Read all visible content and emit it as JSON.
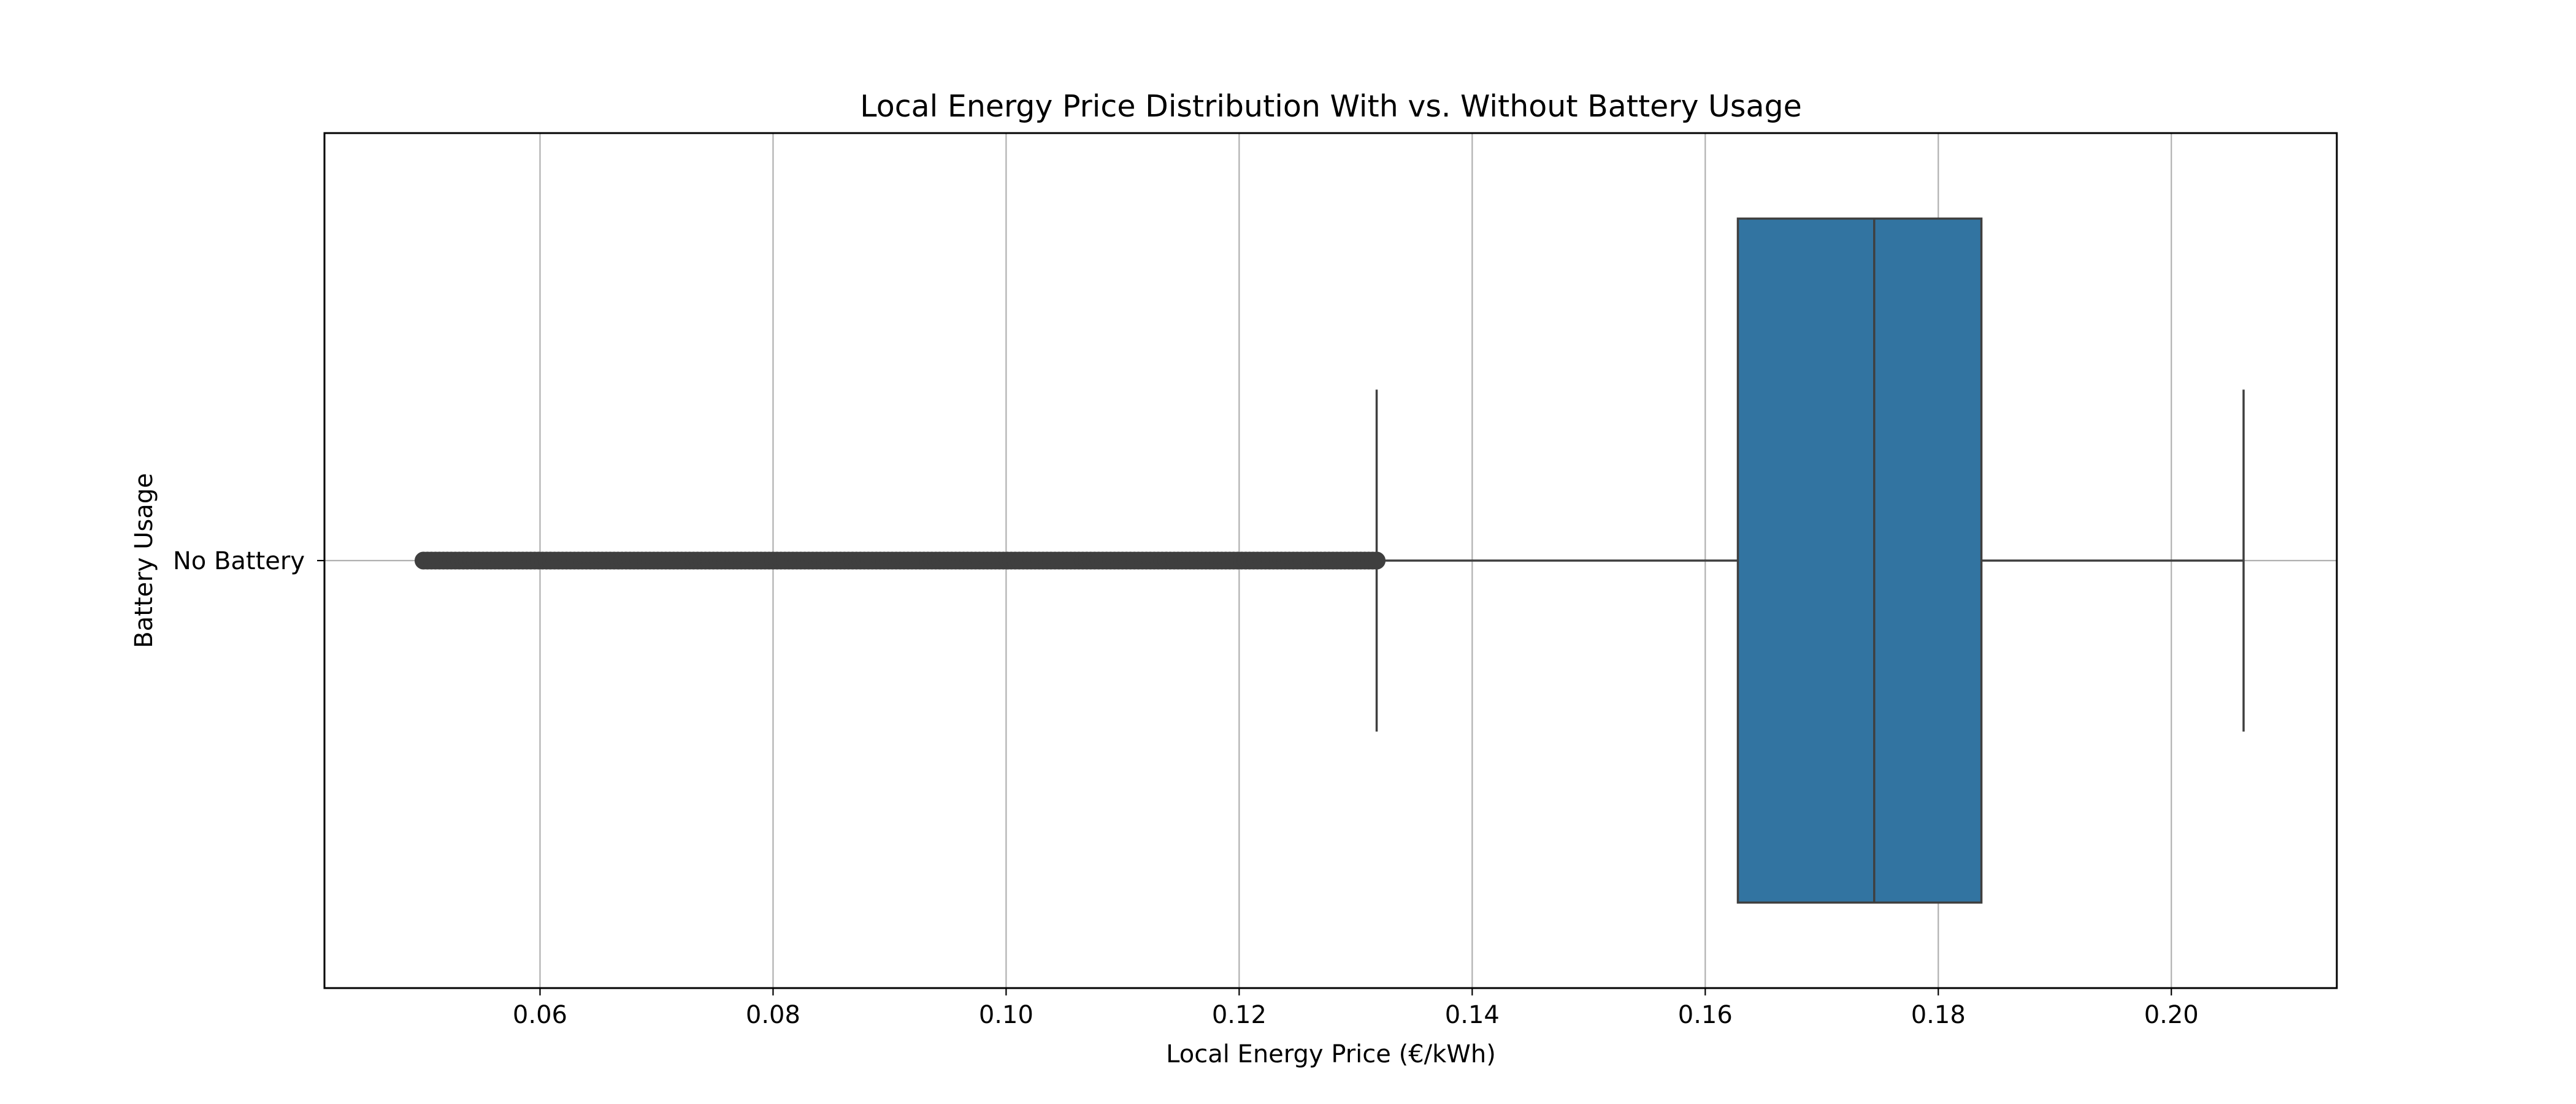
{
  "chart_data": {
    "type": "boxplot",
    "orientation": "horizontal",
    "title": "Local Energy Price Distribution With vs. Without Battery Usage",
    "xlabel": "Local Energy Price (€/kWh)",
    "ylabel": "Battery Usage",
    "xlim": [
      0.0415,
      0.2142
    ],
    "x_ticks": [
      0.06,
      0.08,
      0.1,
      0.12,
      0.14,
      0.16,
      0.18,
      0.2
    ],
    "x_tick_labels": [
      "0.06",
      "0.08",
      "0.10",
      "0.12",
      "0.14",
      "0.16",
      "0.18",
      "0.20"
    ],
    "categories": [
      "No Battery"
    ],
    "grid": true,
    "boxes": [
      {
        "category": "No Battery",
        "whisker_low": 0.1318,
        "q1": 0.1628,
        "median": 0.1745,
        "q3": 0.1837,
        "whisker_high": 0.2062,
        "outliers_range": [
          0.05,
          0.1318
        ],
        "color": "#3274a1"
      }
    ]
  }
}
